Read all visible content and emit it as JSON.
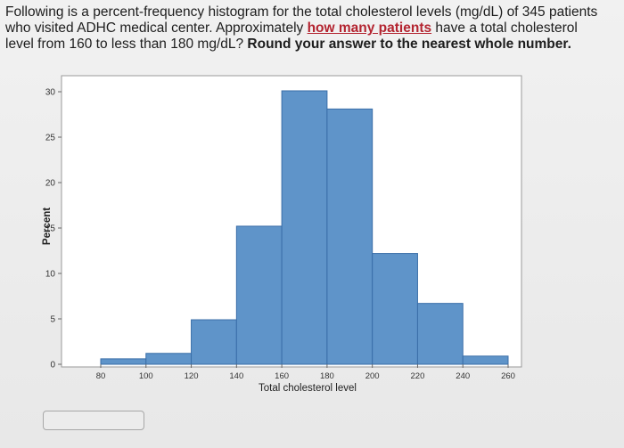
{
  "question": {
    "part1": "Following is a percent-frequency histogram for the total cholesterol levels (mg/dL) of 345 patients who visited ADHC medical center. Approximately ",
    "highlight": "how many patients",
    "part2": " have a total cholesterol level from 160 to less than 180 mg/dL? ",
    "bold": "Round your answer to the nearest whole number."
  },
  "chart_data": {
    "type": "bar",
    "xlabel": "Total cholesterol level",
    "ylabel": "Percent",
    "bins": [
      {
        "from": 80,
        "to": 100,
        "value": 0.6
      },
      {
        "from": 100,
        "to": 120,
        "value": 1.2
      },
      {
        "from": 120,
        "to": 140,
        "value": 4.9
      },
      {
        "from": 140,
        "to": 160,
        "value": 15.2
      },
      {
        "from": 160,
        "to": 180,
        "value": 30.1
      },
      {
        "from": 180,
        "to": 200,
        "value": 28.1
      },
      {
        "from": 200,
        "to": 220,
        "value": 12.2
      },
      {
        "from": 220,
        "to": 240,
        "value": 6.7
      },
      {
        "from": 240,
        "to": 260,
        "value": 0.9
      }
    ],
    "xticks": [
      "80",
      "100",
      "120",
      "140",
      "160",
      "180",
      "200",
      "220",
      "240",
      "260"
    ],
    "yticks": [
      "0",
      "5",
      "10",
      "15",
      "20",
      "25",
      "30"
    ],
    "xlim": [
      80,
      260
    ],
    "ylim": [
      0,
      30
    ],
    "bar_color": "#5f94c9",
    "bar_edge": "#3a6ea8",
    "grid": false
  },
  "answer": {
    "value": ""
  }
}
